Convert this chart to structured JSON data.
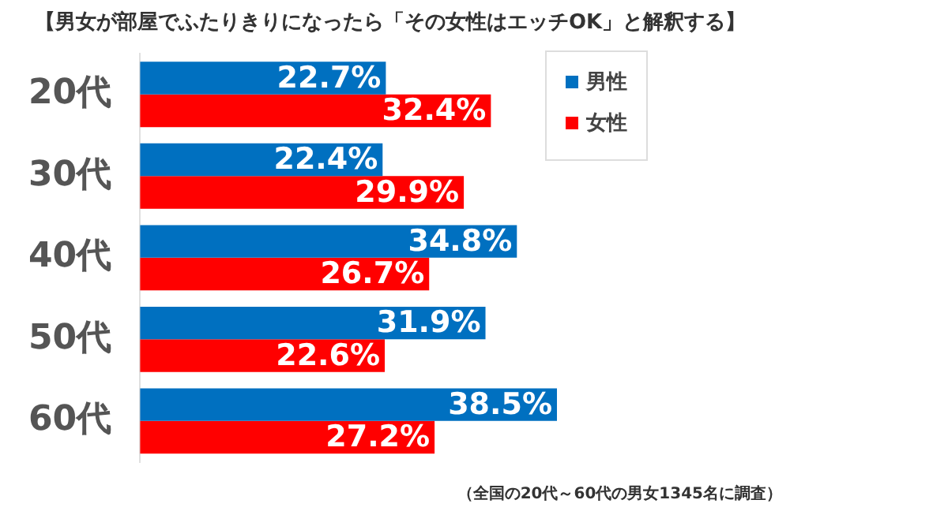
{
  "chart_data": {
    "type": "bar",
    "orientation": "horizontal",
    "title": "【男女が部屋でふたりきりになったら「その女性はエッチOK」と解釈する】",
    "categories": [
      "20代",
      "30代",
      "40代",
      "50代",
      "60代"
    ],
    "series": [
      {
        "name": "男性",
        "color": "#0070c0",
        "values": [
          22.7,
          22.4,
          34.8,
          31.9,
          38.5
        ],
        "value_labels": [
          "22.7%",
          "22.4%",
          "34.8%",
          "31.9%",
          "38.5%"
        ]
      },
      {
        "name": "女性",
        "color": "#ff0000",
        "values": [
          32.4,
          29.9,
          26.7,
          22.6,
          27.2
        ],
        "value_labels": [
          "32.4%",
          "29.9%",
          "26.7%",
          "22.6%",
          "27.2%"
        ]
      }
    ],
    "legend": "top right",
    "tick_labels": "y",
    "annotations": [
      "（全国の20代～60代の男女1345名に調査）"
    ]
  }
}
